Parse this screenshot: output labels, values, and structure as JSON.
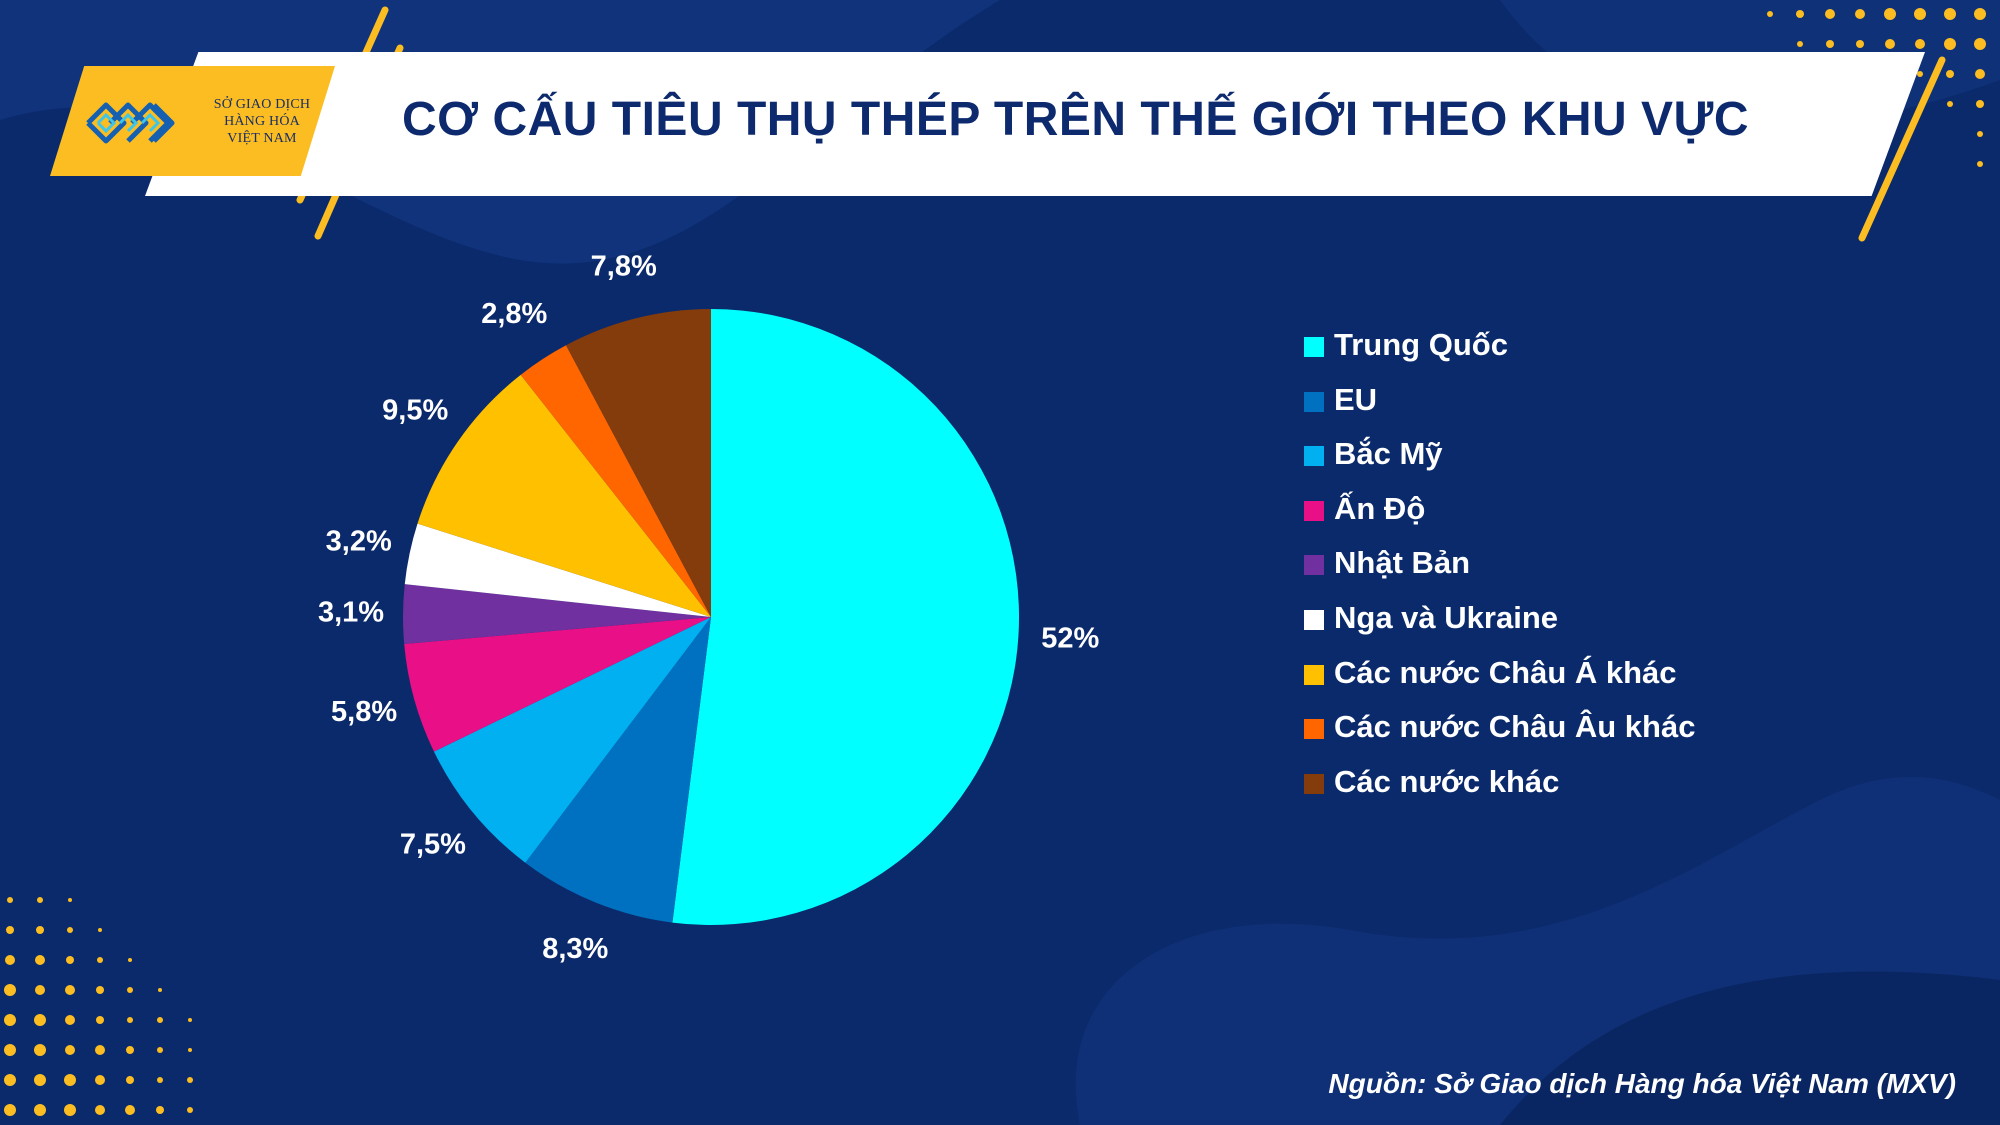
{
  "logo": {
    "line1": "SỞ GIAO DỊCH",
    "line2": "HÀNG HÓA",
    "line3": "VIỆT NAM"
  },
  "title": "CƠ CẤU TIÊU THỤ THÉP TRÊN THẾ GIỚI THEO KHU VỰC",
  "source": "Nguồn: Sở Giao dịch Hàng hóa Việt Nam (MXV)",
  "colors": {
    "background": "#0b2a6b",
    "accent": "#fbbd21",
    "title_text": "#0d2a6e"
  },
  "chart_data": {
    "type": "pie",
    "start": "12 o'clock",
    "direction": "clockwise",
    "legend_position": "right",
    "slices": [
      {
        "name": "Trung Quốc",
        "value": 52,
        "label": "52%",
        "color": "#00ffff"
      },
      {
        "name": "EU",
        "value": 8.3,
        "label": "8,3%",
        "color": "#0070c0"
      },
      {
        "name": "Bắc Mỹ",
        "value": 7.5,
        "label": "7,5%",
        "color": "#00b0f0"
      },
      {
        "name": "Ấn Độ",
        "value": 5.8,
        "label": "5,8%",
        "color": "#e90f86"
      },
      {
        "name": "Nhật Bản",
        "value": 3.1,
        "label": "3,1%",
        "color": "#7030a0"
      },
      {
        "name": "Nga và Ukraine",
        "value": 3.2,
        "label": "3,2%",
        "color": "#ffffff"
      },
      {
        "name": "Các nước Châu Á khác",
        "value": 9.5,
        "label": "9,5%",
        "color": "#ffc000"
      },
      {
        "name": "Các nước Châu Âu khác",
        "value": 2.8,
        "label": "2,8%",
        "color": "#ff6600"
      },
      {
        "name": "Các nước khác",
        "value": 7.8,
        "label": "7,8%",
        "color": "#843c0c"
      }
    ]
  }
}
